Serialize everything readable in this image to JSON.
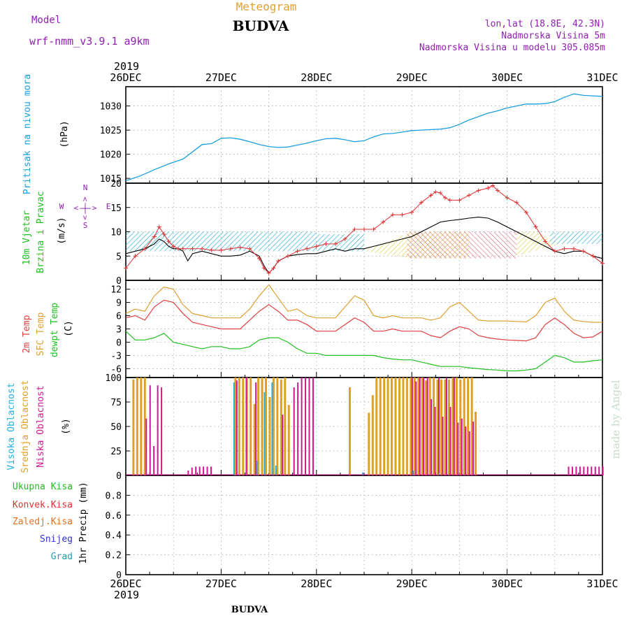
{
  "header": {
    "model_label": "Model",
    "model_name": "wrf-nmm_v3.9.1  a9km",
    "chart_kind": "Meteogram",
    "station": "BUDVA",
    "lonlat": "lon,lat (18.8E, 42.3N)",
    "elevation": "Nadmorska Visina 5m",
    "model_elevation": "Nadmorska Visina u modelu 305.085m",
    "footer_station": "BUDVA",
    "credit": "made by Angel"
  },
  "x_axis": {
    "year": "2019",
    "ticks": [
      "26DEC",
      "27DEC",
      "28DEC",
      "29DEC",
      "30DEC",
      "31DEC"
    ],
    "range_days": [
      0,
      5
    ]
  },
  "colors": {
    "pressure": "#1aa0e0",
    "wind_speed": "#000000",
    "gust": "#e03030",
    "t2m": "#e04040",
    "sfc": "#e0a030",
    "dewpt": "#20c020",
    "high_cloud": "#20b0e0",
    "mid_cloud": "#e0a020",
    "low_cloud": "#d01890",
    "rain_total": "#20c020",
    "rain_conv": "#e03030",
    "frozen": "#e07020",
    "snow": "#3030d0",
    "hail": "#20a0b0",
    "dir_label": "#9020b0",
    "credit": "#c8dccc"
  },
  "panels": {
    "pressure": {
      "label": "Pritisak na nivou mora",
      "unit": "(hPa)",
      "ticks": [
        "1015",
        "1020",
        "1025",
        "1030"
      ]
    },
    "wind": {
      "label1": "10m Vjetar",
      "label2": "Brzina i Pravac",
      "unit": "(m/s)",
      "ticks": [
        "0",
        "5",
        "10",
        "15",
        "20"
      ],
      "dir_n": "N",
      "dir_s": "S",
      "dir_w": "W",
      "dir_e": "E",
      "dir_arrows_h": "<-|->",
      "dir_arrows_v": "<-|->"
    },
    "temp": {
      "label_t2m": "2m Temp",
      "label_sfc": "SFC Temp",
      "label_dew": "dewpt Temp",
      "unit": "(C)",
      "ticks": [
        "-6",
        "-3",
        "0",
        "3",
        "6",
        "9",
        "12"
      ]
    },
    "cloud": {
      "label_high": "Visoka Oblacnost",
      "label_mid": "Srednja Oblacnost",
      "label_low": "Niska Oblacnost",
      "unit": "(%)",
      "ticks": [
        "0",
        "25",
        "50",
        "75",
        "100"
      ]
    },
    "precip": {
      "label_total": "Ukupna Kisa",
      "label_conv": "Konvek.Kisa",
      "label_frozen": "Zaledj.Kisa",
      "label_snow": "Snijeg",
      "label_hail": "Grad",
      "axis_label": "1hr Precip (mm)",
      "ticks": [
        "0",
        "0.2",
        "0.4",
        "0.6",
        "0.8"
      ]
    }
  },
  "chart_data": [
    {
      "type": "line",
      "title": "Pritisak na nivou mora",
      "ylabel": "(hPa)",
      "ylim": [
        1014,
        1034
      ],
      "series": [
        {
          "name": "Pritisak na nivou mora",
          "x": [
            0,
            0.15,
            0.3,
            0.45,
            0.6,
            0.7,
            0.8,
            0.9,
            1.0,
            1.1,
            1.2,
            1.3,
            1.4,
            1.5,
            1.6,
            1.7,
            1.8,
            1.9,
            2.0,
            2.1,
            2.2,
            2.3,
            2.4,
            2.5,
            2.6,
            2.7,
            2.8,
            2.9,
            3.0,
            3.1,
            3.2,
            3.3,
            3.4,
            3.5,
            3.6,
            3.7,
            3.8,
            3.9,
            4.0,
            4.1,
            4.2,
            4.3,
            4.4,
            4.5,
            4.6,
            4.7,
            4.8,
            4.9,
            5.0
          ],
          "y": [
            1014.5,
            1015.5,
            1016.8,
            1018,
            1019,
            1020.5,
            1022,
            1022.2,
            1023.3,
            1023.4,
            1023.1,
            1022.6,
            1022,
            1021.6,
            1021.4,
            1021.5,
            1021.9,
            1022.3,
            1022.8,
            1023.2,
            1023.3,
            1023.0,
            1022.6,
            1022.8,
            1023.6,
            1024.2,
            1024.3,
            1024.6,
            1024.9,
            1025.0,
            1025.1,
            1025.2,
            1025.5,
            1026.2,
            1027.1,
            1027.8,
            1028.5,
            1029.0,
            1029.6,
            1030.0,
            1030.4,
            1030.4,
            1030.5,
            1030.9,
            1031.8,
            1032.5,
            1032.2,
            1032.1,
            1032.0
          ]
        }
      ]
    },
    {
      "type": "line",
      "title": "10m Vjetar Brzina i Pravac",
      "ylabel": "(m/s)",
      "ylim": [
        0,
        20
      ],
      "series": [
        {
          "name": "speed",
          "x": [
            0,
            0.1,
            0.2,
            0.3,
            0.35,
            0.4,
            0.45,
            0.5,
            0.55,
            0.6,
            0.65,
            0.7,
            0.8,
            0.9,
            1.0,
            1.1,
            1.2,
            1.3,
            1.4,
            1.45,
            1.5,
            1.55,
            1.6,
            1.7,
            1.8,
            1.9,
            2.0,
            2.1,
            2.2,
            2.3,
            2.4,
            2.5,
            2.6,
            2.7,
            2.8,
            2.9,
            3.0,
            3.1,
            3.2,
            3.3,
            3.4,
            3.5,
            3.6,
            3.7,
            3.8,
            3.9,
            4.0,
            4.1,
            4.2,
            4.3,
            4.4,
            4.5,
            4.6,
            4.7,
            4.8,
            4.9,
            5.0
          ],
          "y": [
            5.5,
            6,
            6.5,
            7.5,
            8.5,
            8,
            7,
            6.5,
            6.5,
            6,
            4,
            5.5,
            6,
            5.5,
            5,
            5,
            5.2,
            6,
            5,
            3,
            1.5,
            2.5,
            4,
            5,
            5.3,
            5.5,
            5.5,
            6,
            6.5,
            6,
            6.5,
            6.5,
            7,
            7.5,
            8,
            8.5,
            9,
            10,
            11,
            12,
            12.3,
            12.5,
            12.8,
            13,
            12.8,
            12,
            11,
            10,
            9,
            8,
            7,
            6,
            5.5,
            6,
            6,
            5,
            4.5
          ]
        },
        {
          "name": "gust",
          "x": [
            0,
            0.1,
            0.2,
            0.3,
            0.35,
            0.4,
            0.45,
            0.5,
            0.55,
            0.6,
            0.7,
            0.8,
            0.9,
            1.0,
            1.1,
            1.2,
            1.3,
            1.4,
            1.45,
            1.5,
            1.55,
            1.6,
            1.7,
            1.8,
            1.9,
            2.0,
            2.1,
            2.2,
            2.3,
            2.4,
            2.5,
            2.6,
            2.7,
            2.8,
            2.9,
            3.0,
            3.1,
            3.2,
            3.25,
            3.3,
            3.35,
            3.4,
            3.5,
            3.6,
            3.7,
            3.8,
            3.85,
            3.9,
            4.0,
            4.1,
            4.2,
            4.3,
            4.4,
            4.5,
            4.6,
            4.7,
            4.8,
            4.9,
            5.0
          ],
          "y": [
            2.5,
            5,
            6.5,
            9,
            11,
            9.5,
            8,
            7,
            6.5,
            6.5,
            6.5,
            6.5,
            6.2,
            6.2,
            6.5,
            6.8,
            6.5,
            4.5,
            2.5,
            1.5,
            2.5,
            4,
            5,
            6,
            6.5,
            7,
            7.5,
            7.5,
            8.5,
            10.5,
            10.5,
            10.5,
            12,
            13.5,
            13.5,
            14,
            16,
            17.5,
            18.2,
            18,
            17,
            16.5,
            16.5,
            17.5,
            18.5,
            19,
            19.5,
            18.5,
            17,
            16,
            14,
            11,
            8,
            6,
            6.5,
            6.5,
            6,
            5,
            3.5
          ]
        }
      ]
    },
    {
      "type": "line",
      "title": "2m Temp / SFC Temp / dewpt Temp",
      "ylabel": "(C)",
      "ylim": [
        -8,
        14
      ],
      "series": [
        {
          "name": "2m Temp",
          "x": [
            0,
            0.1,
            0.2,
            0.3,
            0.4,
            0.5,
            0.6,
            0.7,
            0.8,
            0.9,
            1.0,
            1.1,
            1.2,
            1.3,
            1.4,
            1.5,
            1.6,
            1.7,
            1.8,
            1.9,
            2.0,
            2.1,
            2.2,
            2.3,
            2.4,
            2.5,
            2.6,
            2.7,
            2.8,
            2.9,
            3.0,
            3.1,
            3.2,
            3.3,
            3.4,
            3.5,
            3.6,
            3.7,
            3.8,
            3.9,
            4.0,
            4.1,
            4.2,
            4.3,
            4.4,
            4.5,
            4.6,
            4.7,
            4.8,
            4.9,
            5.0
          ],
          "y": [
            5.5,
            6,
            5,
            8,
            9.5,
            9,
            6.5,
            4.5,
            4,
            3.5,
            3,
            3,
            3,
            5,
            7,
            8.5,
            7,
            5,
            5,
            4,
            2.5,
            2.5,
            2.5,
            4,
            5.5,
            4.5,
            2.5,
            2.5,
            3,
            2.5,
            2.5,
            2.5,
            1.5,
            1,
            2.5,
            3.5,
            3,
            1.5,
            1,
            0.7,
            0.5,
            0.4,
            0.3,
            1,
            4,
            5.5,
            4,
            2,
            1,
            1.2,
            2.5
          ]
        },
        {
          "name": "SFC Temp",
          "x": [
            0,
            0.1,
            0.2,
            0.3,
            0.4,
            0.5,
            0.6,
            0.7,
            0.8,
            0.9,
            1.0,
            1.1,
            1.2,
            1.3,
            1.4,
            1.5,
            1.6,
            1.7,
            1.8,
            1.9,
            2.0,
            2.1,
            2.2,
            2.3,
            2.4,
            2.5,
            2.6,
            2.7,
            2.8,
            2.9,
            3.0,
            3.1,
            3.2,
            3.3,
            3.4,
            3.5,
            3.6,
            3.7,
            3.8,
            3.9,
            4.0,
            4.1,
            4.2,
            4.3,
            4.4,
            4.5,
            4.6,
            4.7,
            4.8,
            4.9,
            5.0
          ],
          "y": [
            6.5,
            7.5,
            7,
            10.5,
            12.5,
            12,
            8.5,
            6.5,
            6,
            5.5,
            5.5,
            5.5,
            5.5,
            7.5,
            10.5,
            13,
            10,
            7,
            7.5,
            6,
            5.5,
            5.5,
            5.5,
            8,
            10.5,
            9.5,
            6,
            5.5,
            6,
            5.5,
            5.5,
            5.5,
            5,
            5.5,
            8,
            9,
            7,
            5,
            4.8,
            4.8,
            4.8,
            4.7,
            4.6,
            6,
            9,
            10,
            7,
            5,
            4.7,
            4.5,
            4.5
          ]
        },
        {
          "name": "dewpt Temp",
          "x": [
            0,
            0.1,
            0.2,
            0.3,
            0.4,
            0.5,
            0.6,
            0.7,
            0.8,
            0.9,
            1.0,
            1.1,
            1.2,
            1.3,
            1.4,
            1.5,
            1.6,
            1.7,
            1.8,
            1.9,
            2.0,
            2.1,
            2.2,
            2.3,
            2.4,
            2.5,
            2.6,
            2.7,
            2.8,
            2.9,
            3.0,
            3.1,
            3.2,
            3.3,
            3.4,
            3.5,
            3.6,
            3.7,
            3.8,
            3.9,
            4.0,
            4.1,
            4.2,
            4.3,
            4.4,
            4.5,
            4.6,
            4.7,
            4.8,
            4.9,
            5.0
          ],
          "y": [
            2.5,
            0.5,
            0.5,
            1,
            2,
            0,
            -0.5,
            -1,
            -1.5,
            -1,
            -1,
            -1.5,
            -1.5,
            -1,
            0.5,
            1,
            1,
            0,
            -1.5,
            -2.5,
            -2.5,
            -3,
            -3,
            -3,
            -3,
            -3,
            -3,
            -3.5,
            -3.8,
            -4,
            -4,
            -4.5,
            -5,
            -5.5,
            -5.5,
            -5.5,
            -5.8,
            -6,
            -6.2,
            -6.3,
            -6.5,
            -6.5,
            -6.3,
            -6,
            -4.5,
            -3,
            -3.5,
            -4.5,
            -4.5,
            -4.2,
            -4
          ]
        }
      ]
    },
    {
      "type": "bar",
      "title": "Visoka / Srednja / Niska Oblacnost",
      "ylabel": "(%)",
      "ylim": [
        0,
        100
      ],
      "series": [
        {
          "name": "Srednja Oblacnost",
          "x": [
            0.08,
            0.12,
            0.16,
            0.2,
            1.15,
            1.19,
            1.23,
            1.27,
            1.31,
            1.35,
            1.39,
            1.43,
            1.47,
            1.51,
            1.55,
            1.59,
            1.63,
            1.67,
            1.71,
            2.35,
            2.55,
            2.59,
            2.63,
            2.67,
            2.71,
            2.75,
            2.79,
            2.83,
            2.87,
            2.91,
            2.95,
            2.99,
            3.03,
            3.07,
            3.11,
            3.15,
            3.19,
            3.23,
            3.27,
            3.31,
            3.35,
            3.39,
            3.43,
            3.47,
            3.51,
            3.55,
            3.59,
            3.63,
            3.67
          ],
          "y": [
            98,
            100,
            100,
            100,
            100,
            100,
            100,
            100,
            100,
            73,
            100,
            100,
            100,
            80,
            100,
            100,
            98,
            100,
            72,
            90,
            64,
            82,
            100,
            100,
            100,
            100,
            100,
            100,
            100,
            100,
            100,
            100,
            100,
            100,
            100,
            97,
            100,
            100,
            98,
            98,
            98,
            98,
            100,
            100,
            98,
            100,
            100,
            100,
            65
          ]
        },
        {
          "name": "Niska Oblacnost",
          "x": [
            0.2,
            0.24,
            0.28,
            0.32,
            0.36,
            0.64,
            0.68,
            0.72,
            0.76,
            0.8,
            0.84,
            0.88,
            1.15,
            1.25,
            1.35,
            1.63,
            1.75,
            1.79,
            1.83,
            1.87,
            1.91,
            1.95,
            2.99,
            3.03,
            3.07,
            3.11,
            3.15,
            3.19,
            3.23,
            3.27,
            3.31,
            3.35,
            3.39,
            3.43,
            3.47,
            3.51,
            3.55,
            3.59,
            3.63,
            4.63,
            4.67,
            4.71,
            4.75,
            4.79,
            4.83,
            4.87,
            4.91,
            4.95,
            4.99
          ],
          "y": [
            58,
            92,
            30,
            92,
            90,
            5,
            8,
            9,
            9,
            9,
            9,
            9,
            97,
            100,
            95,
            62,
            90,
            95,
            100,
            100,
            100,
            100,
            100,
            96,
            100,
            100,
            100,
            78,
            70,
            100,
            60,
            100,
            70,
            100,
            54,
            58,
            50,
            45,
            55,
            9,
            9,
            9,
            9,
            9,
            9,
            9,
            9,
            9,
            9
          ]
        },
        {
          "name": "Visoka Oblacnost",
          "x": [
            1.15,
            1.39,
            1.47,
            1.55,
            1.59,
            2.5,
            3.03,
            3.3
          ],
          "y": [
            95,
            15,
            85,
            95,
            10,
            3,
            5,
            2
          ]
        }
      ]
    },
    {
      "type": "bar",
      "title": "1hr Precip (mm)",
      "ylabel": "1hr Precip (mm)",
      "ylim": [
        0,
        1.0
      ],
      "series": []
    }
  ]
}
